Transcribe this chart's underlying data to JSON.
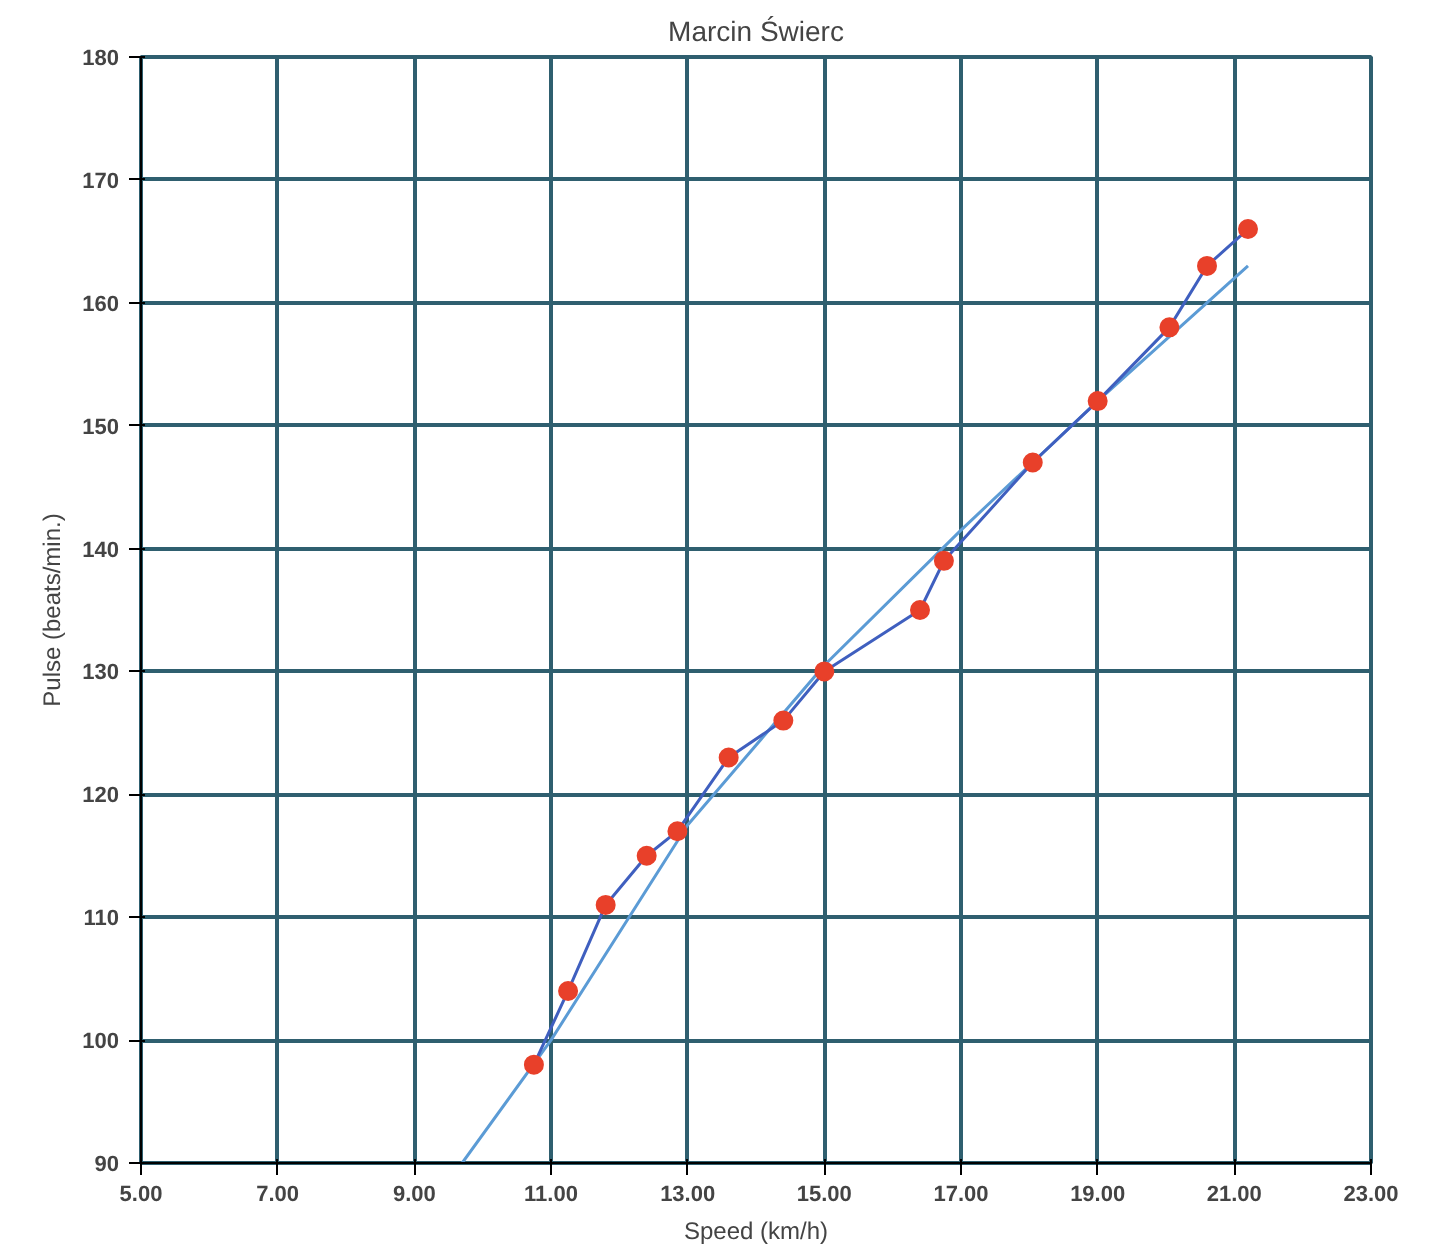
{
  "chart_data": {
    "type": "scatter",
    "title": "Marcin Świerc",
    "xlabel": "Speed (km/h)",
    "ylabel": "Pulse (beats/min.)",
    "xlim": [
      5,
      23
    ],
    "ylim": [
      90,
      180
    ],
    "xticks": [
      {
        "value": 5,
        "label": "5.00"
      },
      {
        "value": 7,
        "label": "7.00"
      },
      {
        "value": 9,
        "label": "9.00"
      },
      {
        "value": 11,
        "label": "11.00"
      },
      {
        "value": 13,
        "label": "13.00"
      },
      {
        "value": 15,
        "label": "15.00"
      },
      {
        "value": 17,
        "label": "17.00"
      },
      {
        "value": 19,
        "label": "19.00"
      },
      {
        "value": 21,
        "label": "21.00"
      },
      {
        "value": 23,
        "label": "23.00"
      }
    ],
    "yticks": [
      90,
      100,
      110,
      120,
      130,
      140,
      150,
      160,
      170,
      180
    ],
    "grid": true,
    "series": [
      {
        "type": "line",
        "color": "#5b9bd5",
        "marker": "none",
        "x": [
          9.7,
          11,
          13,
          15,
          17,
          19,
          21.2
        ],
        "values": [
          90,
          100,
          117.5,
          130.5,
          141.5,
          152,
          163
        ]
      },
      {
        "type": "line",
        "color": "#3f5fbf",
        "marker": "none",
        "x": [
          10.75,
          11.25,
          11.8,
          12.4,
          12.85,
          13.6,
          14.4,
          15.0,
          16.4,
          16.75,
          18.05,
          19.0,
          20.05,
          20.6,
          21.2
        ],
        "values": [
          98,
          104,
          111,
          115,
          117,
          123,
          126,
          130,
          135,
          139,
          147,
          152,
          158,
          163,
          166
        ]
      },
      {
        "color": "#e8402a",
        "marker": "circle",
        "x": [
          10.75,
          11.25,
          11.8,
          12.4,
          12.85,
          13.6,
          14.4,
          15.0,
          16.4,
          16.75,
          18.05,
          19.0,
          20.05,
          20.6,
          21.2
        ],
        "values": [
          98,
          104,
          111,
          115,
          117,
          123,
          126,
          130,
          135,
          139,
          147,
          152,
          158,
          163,
          166
        ]
      }
    ]
  }
}
